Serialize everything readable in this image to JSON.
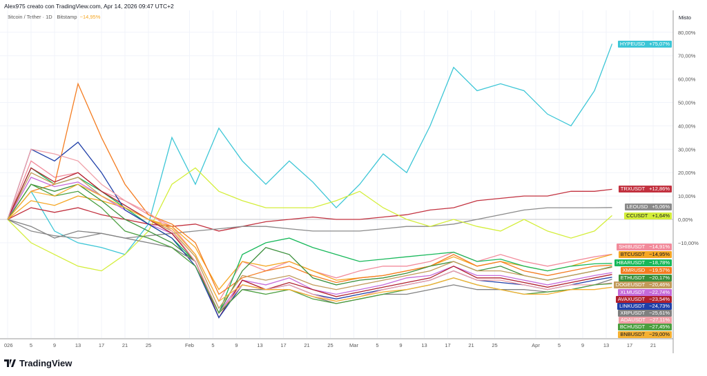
{
  "header": {
    "title": "Alex975 creato con TradingView.com, Apr 14, 2026 09:47 UTC+2",
    "symbol": "Bitcoin / Tether · 1D · Bitstamp",
    "change": "−14,95%"
  },
  "logo": {
    "text": "TradingView"
  },
  "chart_data": {
    "type": "line",
    "axis_title": "Misto",
    "ylim": [
      -50,
      85
    ],
    "grid": true,
    "y_ticks": [
      {
        "v": 80,
        "label": "80,00%"
      },
      {
        "v": 70,
        "label": "70,00%"
      },
      {
        "v": 60,
        "label": "60,00%"
      },
      {
        "v": 50,
        "label": "50,00%"
      },
      {
        "v": 40,
        "label": "40,00%"
      },
      {
        "v": 30,
        "label": "30,00%"
      },
      {
        "v": 20,
        "label": "20,00%"
      },
      {
        "v": 10,
        "label": "10,00%"
      },
      {
        "v": 0,
        "label": "0,00%"
      },
      {
        "v": -10,
        "label": "−10,00%"
      }
    ],
    "x_ticks": [
      {
        "day": 0,
        "label": "026"
      },
      {
        "day": 4,
        "label": "5"
      },
      {
        "day": 8,
        "label": "9"
      },
      {
        "day": 12,
        "label": "13"
      },
      {
        "day": 16,
        "label": "17"
      },
      {
        "day": 20,
        "label": "21"
      },
      {
        "day": 24,
        "label": "25"
      },
      {
        "day": 31,
        "label": "Feb"
      },
      {
        "day": 35,
        "label": "5"
      },
      {
        "day": 39,
        "label": "9"
      },
      {
        "day": 43,
        "label": "13"
      },
      {
        "day": 47,
        "label": "17"
      },
      {
        "day": 51,
        "label": "21"
      },
      {
        "day": 55,
        "label": "25"
      },
      {
        "day": 59,
        "label": "Mar"
      },
      {
        "day": 63,
        "label": "5"
      },
      {
        "day": 67,
        "label": "9"
      },
      {
        "day": 71,
        "label": "13"
      },
      {
        "day": 75,
        "label": "17"
      },
      {
        "day": 79,
        "label": "21"
      },
      {
        "day": 83,
        "label": "25"
      },
      {
        "day": 90,
        "label": "Apr"
      },
      {
        "day": 94,
        "label": "5"
      },
      {
        "day": 98,
        "label": "9"
      },
      {
        "day": 102,
        "label": "13"
      },
      {
        "day": 106,
        "label": "17"
      },
      {
        "day": 110,
        "label": "21"
      }
    ],
    "x_days": [
      0,
      4,
      8,
      12,
      16,
      20,
      24,
      28,
      32,
      36,
      40,
      44,
      48,
      52,
      56,
      60,
      64,
      68,
      72,
      76,
      80,
      84,
      88,
      92,
      96,
      100,
      103
    ],
    "series": [
      {
        "name": "HYPEUSD",
        "label": "+75,07%",
        "color": "#3cc6d6",
        "values": [
          0,
          12,
          -5,
          -10,
          -12,
          -15,
          -2,
          35,
          15,
          39,
          25,
          15,
          25,
          16,
          5,
          15,
          28,
          20,
          40,
          65,
          55,
          58,
          55,
          45,
          40,
          55,
          75.07
        ]
      },
      {
        "name": "TRXUSDT",
        "label": "+12,86%",
        "color": "#c2313f",
        "values": [
          0,
          5,
          3,
          5,
          2,
          0,
          -2,
          -3,
          -2,
          -5,
          -3,
          -1,
          0,
          1,
          0,
          0,
          1,
          2,
          4,
          5,
          8,
          9,
          10,
          10,
          12,
          12,
          12.86
        ]
      },
      {
        "name": "LEOUSD",
        "label": "+5,06%",
        "color": "#8a8a8a",
        "values": [
          0,
          -5,
          -7,
          -8,
          -6,
          -8,
          -7,
          -6,
          -5,
          -4,
          -3,
          -3,
          -4,
          -5,
          -5,
          -5,
          -4,
          -3,
          -3,
          -2,
          0,
          2,
          4,
          5,
          5,
          5,
          5.06
        ]
      },
      {
        "name": "CCUSDT",
        "label": "+1,64%",
        "color": "#d4ee3a",
        "values": [
          0,
          -10,
          -15,
          -20,
          -22,
          -15,
          -5,
          15,
          22,
          12,
          8,
          5,
          5,
          5,
          8,
          12,
          5,
          0,
          -3,
          0,
          -3,
          -5,
          0,
          -5,
          -8,
          -5,
          1.64
        ]
      },
      {
        "name": "SHIBUSDT",
        "label": "−14,91%",
        "color": "#f28b9b",
        "values": [
          0,
          25,
          18,
          20,
          12,
          8,
          2,
          -3,
          -15,
          -35,
          -18,
          -22,
          -18,
          -22,
          -25,
          -22,
          -20,
          -20,
          -18,
          -14,
          -18,
          -15,
          -18,
          -20,
          -18,
          -16,
          -14.91
        ]
      },
      {
        "name": "BTCUSDT",
        "label": "−14,95%",
        "color": "#f5a623",
        "values": [
          0,
          8,
          6,
          10,
          8,
          5,
          0,
          -3,
          -12,
          -30,
          -18,
          -20,
          -18,
          -22,
          -26,
          -25,
          -24,
          -22,
          -20,
          -16,
          -20,
          -18,
          -20,
          -22,
          -20,
          -17,
          -14.95
        ]
      },
      {
        "name": "HBARUSDT",
        "label": "−18,78%",
        "color": "#17b85a",
        "values": [
          0,
          22,
          15,
          18,
          12,
          5,
          -2,
          -8,
          -18,
          -40,
          -15,
          -10,
          -8,
          -12,
          -15,
          -18,
          -17,
          -16,
          -15,
          -14,
          -18,
          -17,
          -20,
          -22,
          -20,
          -19,
          -18.78
        ]
      },
      {
        "name": "XMRUSD",
        "label": "−19,57%",
        "color": "#f47c20",
        "values": [
          0,
          12,
          15,
          58,
          35,
          15,
          2,
          -2,
          -10,
          -32,
          -25,
          -22,
          -20,
          -24,
          -27,
          -25,
          -24,
          -22,
          -20,
          -15,
          -20,
          -18,
          -22,
          -24,
          -22,
          -20,
          -19.57
        ]
      },
      {
        "name": "ETHUSDT",
        "label": "−20,17%",
        "color": "#3a8f3a",
        "values": [
          0,
          15,
          12,
          15,
          8,
          0,
          -5,
          -10,
          -18,
          -40,
          -22,
          -12,
          -15,
          -25,
          -28,
          -26,
          -25,
          -23,
          -20,
          -18,
          -22,
          -20,
          -24,
          -26,
          -24,
          -22,
          -20.17
        ]
      },
      {
        "name": "DOGEUSDT",
        "label": "−20,46%",
        "color": "#c29a5a",
        "values": [
          0,
          20,
          15,
          18,
          10,
          5,
          0,
          -5,
          -16,
          -38,
          -24,
          -26,
          -24,
          -28,
          -30,
          -28,
          -26,
          -24,
          -22,
          -18,
          -22,
          -22,
          -24,
          -26,
          -24,
          -22,
          -20.46
        ]
      },
      {
        "name": "XLMUSDT",
        "label": "−22,74%",
        "color": "#c56bd9",
        "values": [
          0,
          18,
          14,
          16,
          10,
          4,
          -2,
          -6,
          -18,
          -40,
          -26,
          -28,
          -25,
          -30,
          -32,
          -30,
          -28,
          -25,
          -24,
          -20,
          -24,
          -24,
          -26,
          -28,
          -26,
          -24,
          -22.74
        ]
      },
      {
        "name": "AVAXUSDT",
        "label": "−23,54%",
        "color": "#b0202e",
        "values": [
          0,
          22,
          16,
          20,
          12,
          6,
          0,
          -6,
          -18,
          -42,
          -26,
          -30,
          -27,
          -30,
          -33,
          -31,
          -29,
          -27,
          -25,
          -20,
          -25,
          -25,
          -27,
          -29,
          -27,
          -25,
          -23.54
        ]
      },
      {
        "name": "LINKUSDT",
        "label": "−24,73%",
        "color": "#1f3fa8",
        "values": [
          0,
          30,
          25,
          33,
          20,
          4,
          -2,
          -8,
          -20,
          -42,
          -28,
          -30,
          -28,
          -32,
          -34,
          -32,
          -30,
          -28,
          -26,
          -22,
          -26,
          -27,
          -28,
          -30,
          -28,
          -26,
          -24.73
        ]
      },
      {
        "name": "XRPUSDT",
        "label": "−25,61%",
        "color": "#808080",
        "values": [
          0,
          -3,
          -8,
          -5,
          -6,
          -8,
          -10,
          -12,
          -18,
          -40,
          -30,
          -30,
          -30,
          -33,
          -36,
          -34,
          -32,
          -32,
          -30,
          -28,
          -30,
          -30,
          -30,
          -31,
          -30,
          -28,
          -25.61
        ]
      },
      {
        "name": "ADAUSDT",
        "label": "−27,11%",
        "color": "#f0a0a8",
        "values": [
          0,
          30,
          28,
          25,
          15,
          8,
          3,
          -5,
          -18,
          -40,
          -28,
          -30,
          -28,
          -32,
          -35,
          -33,
          -30,
          -28,
          -26,
          -22,
          -26,
          -26,
          -28,
          -30,
          -28,
          -28,
          -27.11
        ]
      },
      {
        "name": "BCHUSDT",
        "label": "−27,45%",
        "color": "#4a9e3e",
        "values": [
          0,
          15,
          10,
          12,
          5,
          -5,
          -8,
          -12,
          -20,
          -40,
          -30,
          -32,
          -30,
          -34,
          -36,
          -34,
          -32,
          -30,
          -28,
          -25,
          -28,
          -30,
          -32,
          -31,
          -30,
          -28,
          -27.45
        ]
      },
      {
        "name": "BNBUSDT",
        "label": "−29,00%",
        "color": "#f5b031",
        "values": [
          0,
          12,
          10,
          15,
          10,
          5,
          0,
          -4,
          -15,
          -35,
          -28,
          -30,
          -30,
          -33,
          -35,
          -33,
          -31,
          -30,
          -28,
          -25,
          -28,
          -30,
          -32,
          -32,
          -30,
          -30,
          -29.0
        ]
      }
    ]
  }
}
